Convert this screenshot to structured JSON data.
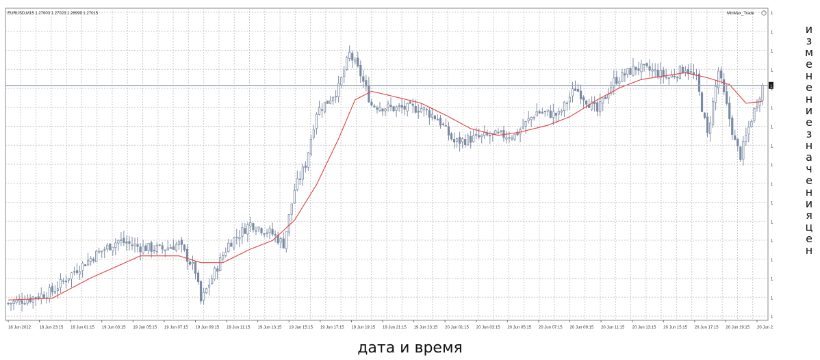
{
  "header": {
    "symbol_info": "EURUSD,M15  1.27003 1.27023 1.26999 1.27015",
    "indicator_label": "MinMax_Trade"
  },
  "captions": {
    "y_axis_vertical": "изменение значения цен",
    "x_axis": "дата и время"
  },
  "colors": {
    "bull_body": "#ffffff",
    "bear_body": "#7b8aa3",
    "candle_outline": "#7b8aa3",
    "moving_average": "#e24a4a",
    "current_price_line": "#9aa7bc",
    "grid": "#c8c8c8"
  },
  "chart_data": {
    "type": "candlestick",
    "title": "",
    "xlabel": "дата и время",
    "ylabel": "изменение значения цен",
    "ylim": [
      1.2563,
      1.2747
    ],
    "grid": true,
    "current_price": 1.27015,
    "current_price_label": "1.27015",
    "y_ticks": [
      "1.27470",
      "1.27355",
      "1.27240",
      "1.27125",
      "1.27015",
      "1.26895",
      "1.26780",
      "1.26665",
      "1.26550",
      "1.26435",
      "1.26320",
      "1.26205",
      "1.26090",
      "1.25975",
      "1.25860",
      "1.25745",
      "1.25630"
    ],
    "x_ticks": [
      "18 Jun 2012",
      "18 Jun 23:15",
      "19 Jun 01:15",
      "19 Jun 03:15",
      "19 Jun 05:15",
      "19 Jun 07:15",
      "19 Jun 09:15",
      "19 Jun 11:15",
      "19 Jun 13:15",
      "19 Jun 15:15",
      "19 Jun 17:15",
      "19 Jun 19:15",
      "19 Jun 21:15",
      "19 Jun 23:15",
      "20 Jun 01:15",
      "20 Jun 03:15",
      "20 Jun 05:15",
      "20 Jun 07:15",
      "20 Jun 09:15",
      "20 Jun 11:15",
      "20 Jun 13:15",
      "20 Jun 15:15",
      "20 Jun 17:15",
      "20 Jun 19:15",
      "20 Jun 21:15"
    ],
    "ohlc_keypoints": [
      {
        "i": 0,
        "c": 1.2573
      },
      {
        "i": 8,
        "c": 1.2576
      },
      {
        "i": 16,
        "c": 1.258
      },
      {
        "i": 24,
        "c": 1.2592
      },
      {
        "i": 32,
        "c": 1.2602
      },
      {
        "i": 40,
        "c": 1.261
      },
      {
        "i": 48,
        "c": 1.2606
      },
      {
        "i": 56,
        "c": 1.2605
      },
      {
        "i": 62,
        "c": 1.2608
      },
      {
        "i": 68,
        "c": 1.2592
      },
      {
        "i": 70,
        "c": 1.2574
      },
      {
        "i": 74,
        "c": 1.2588
      },
      {
        "i": 80,
        "c": 1.2608
      },
      {
        "i": 88,
        "c": 1.262
      },
      {
        "i": 96,
        "c": 1.2614
      },
      {
        "i": 100,
        "c": 1.2608
      },
      {
        "i": 104,
        "c": 1.264
      },
      {
        "i": 108,
        "c": 1.2655
      },
      {
        "i": 112,
        "c": 1.2686
      },
      {
        "i": 116,
        "c": 1.2692
      },
      {
        "i": 120,
        "c": 1.27
      },
      {
        "i": 124,
        "c": 1.272
      },
      {
        "i": 128,
        "c": 1.2708
      },
      {
        "i": 132,
        "c": 1.269
      },
      {
        "i": 140,
        "c": 1.2688
      },
      {
        "i": 150,
        "c": 1.2688
      },
      {
        "i": 156,
        "c": 1.2682
      },
      {
        "i": 162,
        "c": 1.2668
      },
      {
        "i": 168,
        "c": 1.267
      },
      {
        "i": 176,
        "c": 1.2672
      },
      {
        "i": 184,
        "c": 1.2672
      },
      {
        "i": 192,
        "c": 1.2686
      },
      {
        "i": 200,
        "c": 1.2684
      },
      {
        "i": 206,
        "c": 1.27
      },
      {
        "i": 214,
        "c": 1.2686
      },
      {
        "i": 220,
        "c": 1.2704
      },
      {
        "i": 228,
        "c": 1.2712
      },
      {
        "i": 234,
        "c": 1.271
      },
      {
        "i": 240,
        "c": 1.2706
      },
      {
        "i": 246,
        "c": 1.2712
      },
      {
        "i": 250,
        "c": 1.2705
      },
      {
        "i": 254,
        "c": 1.2672
      },
      {
        "i": 258,
        "c": 1.271
      },
      {
        "i": 264,
        "c": 1.2668
      },
      {
        "i": 266,
        "c": 1.266
      },
      {
        "i": 270,
        "c": 1.2682
      },
      {
        "i": 274,
        "c": 1.2701
      }
    ],
    "ma_keypoints": [
      {
        "i": 0,
        "v": 1.2575
      },
      {
        "i": 16,
        "v": 1.2576
      },
      {
        "i": 30,
        "v": 1.2588
      },
      {
        "i": 48,
        "v": 1.2601
      },
      {
        "i": 62,
        "v": 1.2601
      },
      {
        "i": 70,
        "v": 1.2597
      },
      {
        "i": 78,
        "v": 1.2597
      },
      {
        "i": 88,
        "v": 1.2605
      },
      {
        "i": 96,
        "v": 1.261
      },
      {
        "i": 104,
        "v": 1.2622
      },
      {
        "i": 112,
        "v": 1.2643
      },
      {
        "i": 120,
        "v": 1.267
      },
      {
        "i": 126,
        "v": 1.2693
      },
      {
        "i": 132,
        "v": 1.2698
      },
      {
        "i": 140,
        "v": 1.2695
      },
      {
        "i": 150,
        "v": 1.2691
      },
      {
        "i": 160,
        "v": 1.2683
      },
      {
        "i": 168,
        "v": 1.2676
      },
      {
        "i": 178,
        "v": 1.2672
      },
      {
        "i": 186,
        "v": 1.2674
      },
      {
        "i": 196,
        "v": 1.2678
      },
      {
        "i": 204,
        "v": 1.2683
      },
      {
        "i": 214,
        "v": 1.2693
      },
      {
        "i": 222,
        "v": 1.27
      },
      {
        "i": 230,
        "v": 1.2705
      },
      {
        "i": 238,
        "v": 1.2707
      },
      {
        "i": 246,
        "v": 1.2709
      },
      {
        "i": 254,
        "v": 1.2706
      },
      {
        "i": 262,
        "v": 1.2702
      },
      {
        "i": 268,
        "v": 1.2691
      },
      {
        "i": 274,
        "v": 1.2692
      }
    ],
    "bar_count": 275
  }
}
